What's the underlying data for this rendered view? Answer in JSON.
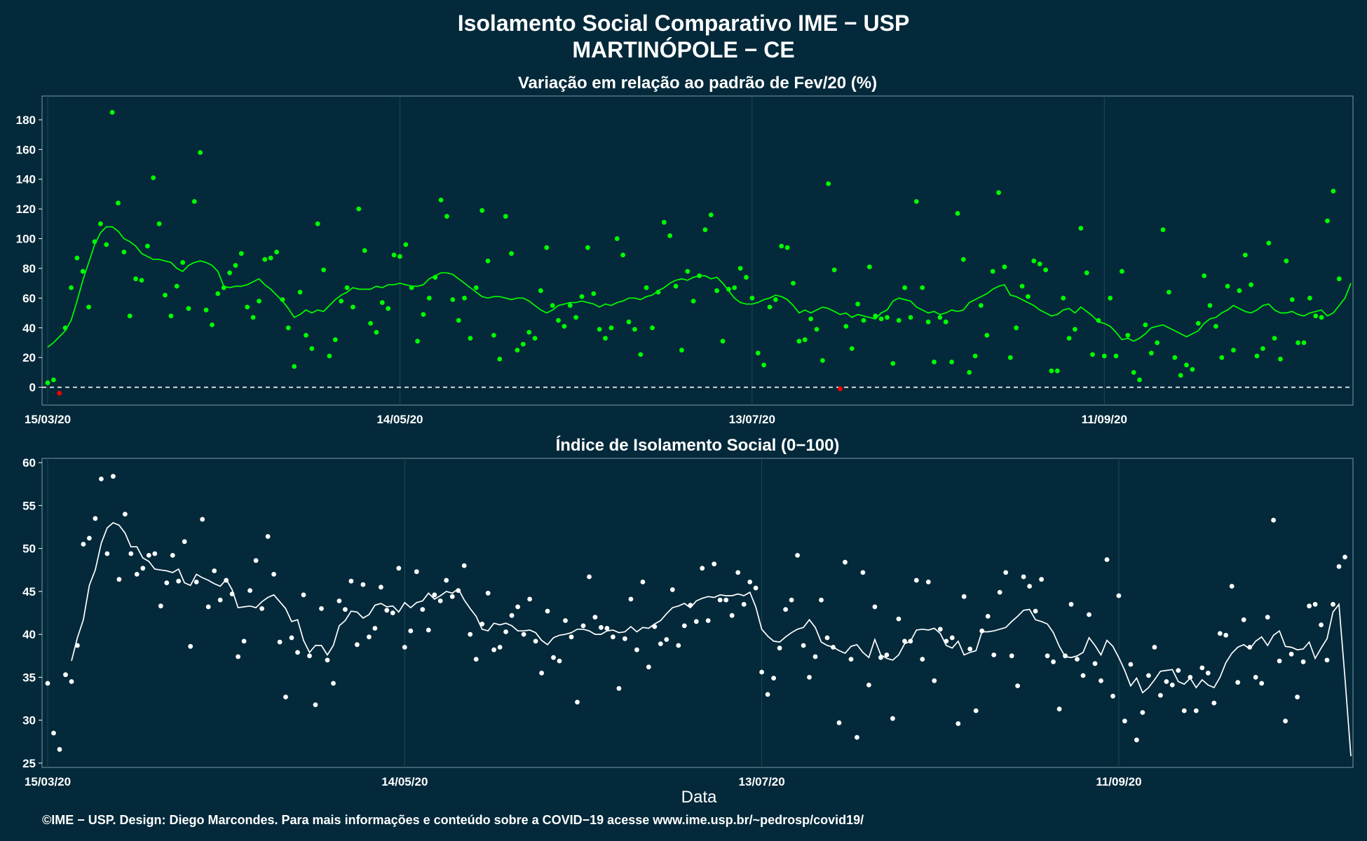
{
  "figure": {
    "title_line1": "Isolamento Social Comparativo IME − USP",
    "title_line2": "MARTINÓPOLE − CE",
    "xlabel": "Data",
    "footer": "©IME − USP. Design: Diego Marcondes. Para mais informações e conteúdo sobre a COVID−19 acesse www.ime.usp.br/~pedrosp/covid19/",
    "colors": {
      "background": "#03293a",
      "top_points": "#00ff00",
      "top_negative": "#ff0000",
      "bottom_points": "#ffffff",
      "gridline": "#1f4a55",
      "reference_line": "#ffffff"
    }
  },
  "chart_data": [
    {
      "type": "scatter",
      "title": "Variação em relação ao padrão de Fev/20 (%)",
      "xlabel": "",
      "ylabel": "",
      "x_start": "2020-03-15",
      "x_ticks": [
        "15/03/20",
        "14/05/20",
        "13/07/20",
        "11/09/20"
      ],
      "ylim": [
        -12,
        196
      ],
      "yticks": [
        0,
        20,
        40,
        60,
        80,
        100,
        120,
        140,
        160,
        180
      ],
      "grid": true,
      "reference_line": 0,
      "series": [
        {
          "role": "daily",
          "values": [
            3,
            5,
            -4,
            40,
            67,
            87,
            78,
            54,
            98,
            110,
            96,
            185,
            124,
            91,
            48,
            73,
            72,
            95,
            141,
            110,
            62,
            48,
            68,
            84,
            53,
            125,
            158,
            52,
            42,
            63,
            67,
            77,
            82,
            90,
            54,
            47,
            58,
            86,
            87,
            91,
            59,
            40,
            14,
            64,
            35,
            26,
            110,
            79,
            21,
            32,
            58,
            67,
            54,
            120,
            92,
            43,
            37,
            57,
            53,
            89,
            88,
            96,
            67,
            31,
            49,
            60,
            74,
            126,
            115,
            59,
            45,
            60,
            33,
            67,
            119,
            85,
            35,
            19,
            115,
            90,
            25,
            29,
            37,
            33,
            65,
            94,
            55,
            45,
            41,
            55,
            47,
            61,
            94,
            63,
            39,
            33,
            40,
            100,
            89,
            44,
            39,
            22,
            67,
            40,
            64,
            111,
            102,
            68,
            25,
            78,
            58,
            75,
            106,
            116,
            65,
            31,
            66,
            67,
            80,
            74,
            60,
            23,
            15,
            54,
            59,
            95,
            94,
            70,
            31,
            32,
            46,
            39,
            18,
            137,
            79,
            -1,
            41,
            26,
            56,
            45,
            81,
            48,
            46,
            47,
            16,
            45,
            67,
            47,
            125,
            67,
            44,
            17,
            47,
            44,
            17,
            117,
            86,
            10,
            21,
            55,
            35,
            78,
            131,
            81,
            20,
            40,
            68,
            61,
            85,
            83,
            79,
            11,
            11,
            60,
            33,
            39,
            107,
            77,
            22,
            45,
            21,
            60,
            21,
            78,
            35,
            10,
            5,
            42,
            23,
            30,
            106,
            64,
            20,
            8,
            15,
            12,
            43,
            75,
            55,
            41,
            20,
            68,
            25,
            65,
            89,
            69,
            21,
            26,
            97,
            33,
            19,
            85,
            59,
            30,
            30,
            60,
            48,
            47,
            112,
            132,
            73
          ]
        },
        {
          "role": "moving_average",
          "values": [
            27,
            30,
            34,
            38,
            45,
            58,
            72,
            84,
            96,
            104,
            108,
            108,
            105,
            100,
            98,
            95,
            90,
            88,
            86,
            86,
            85,
            84,
            80,
            78,
            82,
            84,
            85,
            84,
            82,
            78,
            68,
            67,
            68,
            68,
            69,
            71,
            73,
            69,
            66,
            62,
            58,
            53,
            47,
            49,
            52,
            50,
            52,
            51,
            55,
            59,
            62,
            64,
            67,
            66,
            66,
            66,
            68,
            67,
            69,
            69,
            70,
            69,
            68,
            68,
            69,
            73,
            75,
            77,
            77,
            76,
            73,
            70,
            67,
            64,
            61,
            60,
            61,
            61,
            60,
            59,
            60,
            60,
            58,
            55,
            52,
            50,
            52,
            55,
            56,
            57,
            57,
            58,
            57,
            56,
            54,
            56,
            55,
            57,
            58,
            60,
            60,
            59,
            61,
            62,
            65,
            67,
            70,
            72,
            73,
            72,
            74,
            75,
            75,
            73,
            74,
            70,
            65,
            60,
            57,
            56,
            56,
            57,
            59,
            60,
            62,
            61,
            59,
            55,
            50,
            52,
            50,
            52,
            54,
            53,
            51,
            49,
            50,
            47,
            49,
            48,
            47,
            46,
            50,
            52,
            58,
            60,
            59,
            58,
            54,
            52,
            50,
            51,
            49,
            50,
            52,
            51,
            52,
            57,
            59,
            61,
            63,
            66,
            68,
            69,
            62,
            61,
            59,
            57,
            55,
            52,
            50,
            48,
            49,
            52,
            53,
            50,
            54,
            51,
            48,
            44,
            43,
            41,
            37,
            32,
            33,
            31,
            33,
            36,
            40,
            41,
            42,
            40,
            38,
            36,
            34,
            36,
            38,
            43,
            46,
            47,
            50,
            52,
            55,
            53,
            51,
            50,
            52,
            55,
            56,
            52,
            50,
            50,
            51,
            49,
            48,
            50,
            51,
            52,
            48,
            50,
            55,
            60,
            70
          ]
        }
      ]
    },
    {
      "type": "scatter",
      "title": "Índice de Isolamento Social (0−100)",
      "xlabel": "Data",
      "ylabel": "",
      "x_start": "2020-03-15",
      "x_ticks": [
        "15/03/20",
        "14/05/20",
        "13/07/20",
        "11/09/20"
      ],
      "ylim": [
        24.5,
        60.5
      ],
      "yticks": [
        25,
        30,
        35,
        40,
        45,
        50,
        55,
        60
      ],
      "grid": true,
      "series": [
        {
          "role": "daily",
          "values": [
            34.3,
            28.5,
            26.6,
            35.3,
            34.5,
            38.7,
            50.5,
            51.2,
            53.5,
            58.1,
            49.4,
            58.4,
            46.4,
            54.0,
            49.4,
            47.0,
            47.7,
            49.2,
            49.4,
            43.3,
            46.0,
            49.2,
            46.2,
            50.8,
            38.6,
            46.1,
            53.4,
            43.2,
            47.4,
            44.0,
            46.3,
            44.7,
            37.4,
            39.2,
            45.1,
            48.6,
            43.0,
            51.4,
            47.0,
            39.1,
            32.7,
            39.6,
            37.9,
            44.6,
            37.5,
            31.8,
            43.0,
            37.0,
            34.3,
            43.9,
            42.9,
            46.2,
            38.8,
            45.8,
            39.7,
            40.7,
            45.5,
            42.8,
            42.5,
            47.7,
            38.5,
            40.4,
            47.3,
            42.9,
            40.5,
            44.6,
            43.9,
            46.3,
            44.4,
            45.1,
            48.0,
            40.0,
            37.1,
            41.2,
            44.8,
            38.2,
            38.5,
            40.3,
            42.2,
            43.2,
            40.0,
            44.1,
            39.2,
            35.5,
            42.7,
            37.3,
            36.9,
            41.6,
            39.7,
            32.1,
            41.0,
            46.7,
            42.0,
            40.8,
            40.7,
            39.7,
            33.7,
            39.5,
            44.1,
            38.2,
            46.1,
            36.2,
            40.9,
            38.9,
            39.4,
            45.2,
            38.7,
            41.0,
            43.4,
            41.5,
            47.7,
            41.6,
            48.2,
            44.0,
            44.0,
            42.2,
            47.2,
            43.5,
            46.1,
            45.4,
            35.6,
            33.0,
            34.9,
            38.4,
            42.9,
            44.0,
            49.2,
            38.7,
            35.0,
            37.4,
            44.0,
            39.6,
            38.5,
            29.7,
            48.4,
            37.1,
            28.0,
            47.2,
            34.1,
            43.2,
            37.3,
            37.6,
            30.2,
            41.8,
            39.2,
            39.2,
            46.3,
            37.1,
            46.1,
            34.6,
            40.6,
            39.2,
            39.6,
            29.6,
            44.4,
            38.3,
            31.1,
            40.4,
            42.1,
            37.6,
            44.9,
            47.2,
            37.5,
            34.0,
            46.7,
            45.6,
            42.7,
            46.4,
            37.5,
            36.8,
            31.3,
            37.5,
            43.5,
            37.1,
            35.2,
            42.3,
            36.6,
            34.6,
            48.7,
            32.8,
            44.5,
            29.9,
            36.5,
            27.7,
            30.9,
            35.2,
            38.5,
            32.9,
            34.5,
            34.1,
            35.8,
            31.1,
            35.0,
            31.1,
            36.1,
            35.5,
            32.0,
            40.1,
            39.9,
            45.6,
            34.4,
            41.7,
            38.5,
            35.0,
            34.3,
            42.0,
            53.3,
            36.9,
            29.9,
            37.7,
            32.7,
            36.8,
            43.3,
            43.5,
            41.1,
            37.0,
            43.5,
            47.9,
            49.0
          ]
        },
        {
          "role": "moving_average",
          "values": [
            null,
            null,
            null,
            null,
            36.9,
            39.6,
            41.7,
            45.7,
            47.5,
            50.6,
            52.4,
            53.0,
            52.7,
            51.8,
            50.2,
            50.2,
            48.9,
            48.5,
            47.6,
            47.5,
            47.4,
            47.2,
            47.6,
            46.0,
            45.7,
            47.0,
            46.6,
            46.3,
            45.9,
            45.6,
            46.4,
            45.2,
            43.1,
            43.2,
            43.3,
            43.1,
            43.8,
            44.3,
            44.6,
            43.8,
            43.0,
            41.5,
            41.7,
            39.3,
            37.9,
            38.7,
            38.7,
            37.6,
            38.7,
            41.0,
            41.6,
            42.7,
            42.6,
            41.9,
            42.3,
            43.4,
            43.6,
            43.2,
            43.3,
            42.6,
            43.7,
            43.1,
            43.7,
            43.9,
            44.8,
            44.1,
            44.5,
            45.0,
            44.8,
            45.3,
            44.0,
            43.0,
            42.1,
            40.6,
            40.4,
            41.3,
            41.1,
            41.3,
            41.0,
            40.4,
            40.4,
            40.5,
            40.2,
            39.3,
            38.8,
            39.6,
            39.9,
            40.0,
            40.2,
            40.6,
            40.6,
            40.4,
            40.0,
            40.0,
            40.4,
            40.5,
            40.2,
            40.3,
            40.9,
            40.3,
            40.8,
            40.7,
            41.2,
            41.6,
            42.4,
            43.1,
            43.3,
            43.6,
            43.1,
            43.9,
            44.2,
            44.4,
            44.3,
            44.6,
            44.5,
            44.5,
            44.7,
            44.5,
            44.9,
            43.2,
            40.6,
            39.8,
            39.2,
            39.1,
            39.7,
            40.2,
            40.6,
            40.8,
            41.7,
            40.8,
            39.1,
            38.7,
            38.5,
            38.1,
            37.8,
            38.6,
            38.8,
            37.9,
            37.3,
            39.4,
            37.6,
            37.2,
            37.0,
            37.6,
            38.9,
            39.2,
            40.5,
            40.6,
            40.5,
            40.7,
            40.1,
            38.7,
            38.4,
            39.2,
            37.6,
            37.9,
            38.1,
            40.3,
            40.3,
            40.4,
            40.6,
            40.8,
            41.5,
            42.1,
            42.8,
            42.9,
            41.7,
            41.5,
            41.2,
            40.2,
            38.6,
            37.4,
            37.3,
            37.5,
            37.9,
            39.6,
            38.7,
            37.6,
            39.3,
            38.6,
            37.3,
            35.8,
            34.0,
            34.9,
            33.2,
            33.8,
            34.7,
            35.7,
            35.8,
            35.9,
            34.5,
            34.2,
            34.9,
            33.8,
            34.7,
            34.1,
            33.8,
            35.0,
            36.7,
            37.8,
            38.5,
            38.8,
            38.3,
            39.2,
            39.7,
            38.7,
            39.9,
            40.4,
            38.6,
            38.5,
            38.2,
            38.3,
            39.1,
            37.2,
            38.4,
            39.5,
            42.6,
            43.5,
            35.0,
            25.8
          ]
        }
      ]
    }
  ]
}
